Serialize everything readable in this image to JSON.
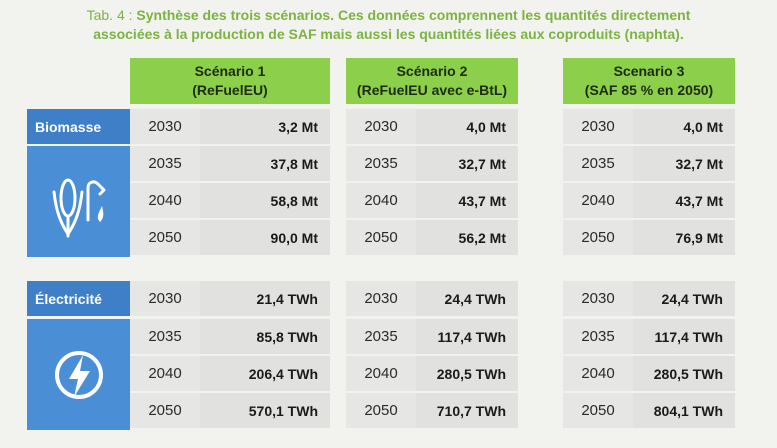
{
  "caption": {
    "lead": "Tab. 4 : ",
    "line1": "Synthèse des trois scénarios. Ces données comprennent les quantités directement",
    "line2": "associées à la production de SAF mais aussi les quantités liées aux coproduits (naphta)."
  },
  "scenarios": [
    {
      "line1": "Scénario 1",
      "line2": "(ReFuelEU)"
    },
    {
      "line1": "Scénario 2",
      "line2": "(ReFuelEU avec e-BtL)"
    },
    {
      "line1": "Scenario 3",
      "line2": "(SAF 85 % en 2050)"
    }
  ],
  "biomasse": {
    "label": "Biomasse",
    "icon": "corn-fuel-icon",
    "years": [
      "2030",
      "2035",
      "2040",
      "2050"
    ],
    "values": [
      [
        "3,2 Mt",
        "37,8 Mt",
        "58,8 Mt",
        "90,0 Mt"
      ],
      [
        "4,0 Mt",
        "32,7 Mt",
        "43,7 Mt",
        "56,2 Mt"
      ],
      [
        "4,0 Mt",
        "32,7 Mt",
        "43,7 Mt",
        "76,9 Mt"
      ]
    ]
  },
  "electricite": {
    "label": "Électricité",
    "icon": "lightning-icon",
    "years": [
      "2030",
      "2035",
      "2040",
      "2050"
    ],
    "values": [
      [
        "21,4 TWh",
        "85,8 TWh",
        "206,4 TWh",
        "570,1 TWh"
      ],
      [
        "24,4 TWh",
        "117,4 TWh",
        "280,5 TWh",
        "710,7 TWh"
      ],
      [
        "24,4 TWh",
        "117,4 TWh",
        "280,5 TWh",
        "804,1 TWh"
      ]
    ]
  },
  "colors": {
    "accent_green": "#8ccf4a",
    "caption_green": "#7cb342",
    "category_blue": "#3f7fc8"
  }
}
